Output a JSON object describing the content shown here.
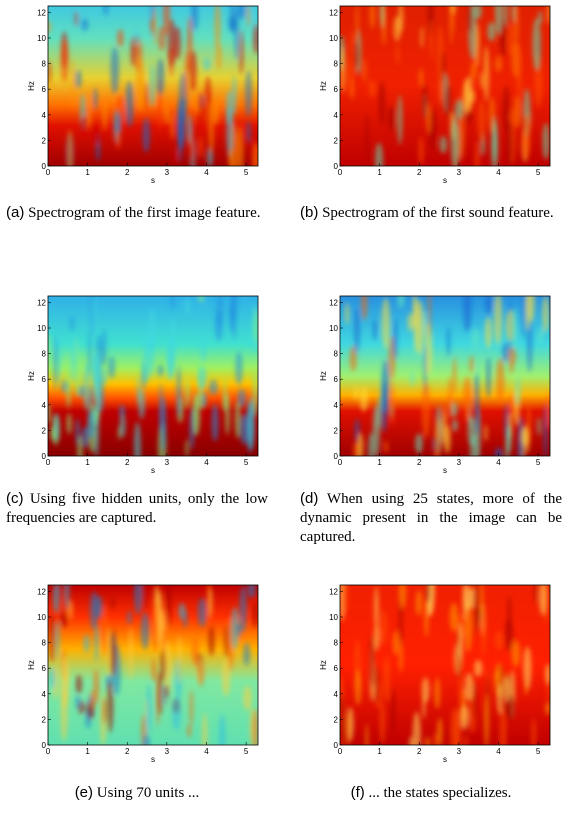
{
  "panels": [
    {
      "label": "(a)",
      "caption": "Spectrogram of the first image feature.",
      "xlabel": "s",
      "ylabel": "Hz",
      "xlim": [
        0,
        5.3
      ],
      "ylim": [
        0,
        12.5
      ],
      "xticks": [
        0,
        1,
        2,
        3,
        4,
        5
      ],
      "yticks": [
        0,
        2,
        4,
        6,
        8,
        10,
        12
      ]
    },
    {
      "label": "(b)",
      "caption": "Spectrogram of the first sound feature.",
      "xlabel": "s",
      "ylabel": "Hz",
      "xlim": [
        0,
        5.3
      ],
      "ylim": [
        0,
        12.5
      ],
      "xticks": [
        0,
        1,
        2,
        3,
        4,
        5
      ],
      "yticks": [
        0,
        2,
        4,
        6,
        8,
        10,
        12
      ]
    },
    {
      "label": "(c)",
      "caption": "Using five hidden units, only the low frequencies are captured.",
      "xlabel": "s",
      "ylabel": "Hz",
      "xlim": [
        0,
        5.3
      ],
      "ylim": [
        0,
        12.5
      ],
      "xticks": [
        0,
        1,
        2,
        3,
        4,
        5
      ],
      "yticks": [
        0,
        2,
        4,
        6,
        8,
        10,
        12
      ]
    },
    {
      "label": "(d)",
      "caption": "When using 25 states, more of the dynamic present in the image can be captured.",
      "xlabel": "s",
      "ylabel": "Hz",
      "xlim": [
        0,
        5.3
      ],
      "ylim": [
        0,
        12.5
      ],
      "xticks": [
        0,
        1,
        2,
        3,
        4,
        5
      ],
      "yticks": [
        0,
        2,
        4,
        6,
        8,
        10,
        12
      ]
    },
    {
      "label": "(e)",
      "caption": "Using 70 units ...",
      "xlabel": "s",
      "ylabel": "Hz",
      "xlim": [
        0,
        5.3
      ],
      "ylim": [
        0,
        12.5
      ],
      "xticks": [
        0,
        1,
        2,
        3,
        4,
        5
      ],
      "yticks": [
        0,
        2,
        4,
        6,
        8,
        10,
        12
      ]
    },
    {
      "label": "(f)",
      "caption": "... the states specializes.",
      "xlabel": "s",
      "ylabel": "Hz",
      "xlim": [
        0,
        5.3
      ],
      "ylim": [
        0,
        12.5
      ],
      "xticks": [
        0,
        1,
        2,
        3,
        4,
        5
      ],
      "yticks": [
        0,
        2,
        4,
        6,
        8,
        10,
        12
      ]
    }
  ]
}
